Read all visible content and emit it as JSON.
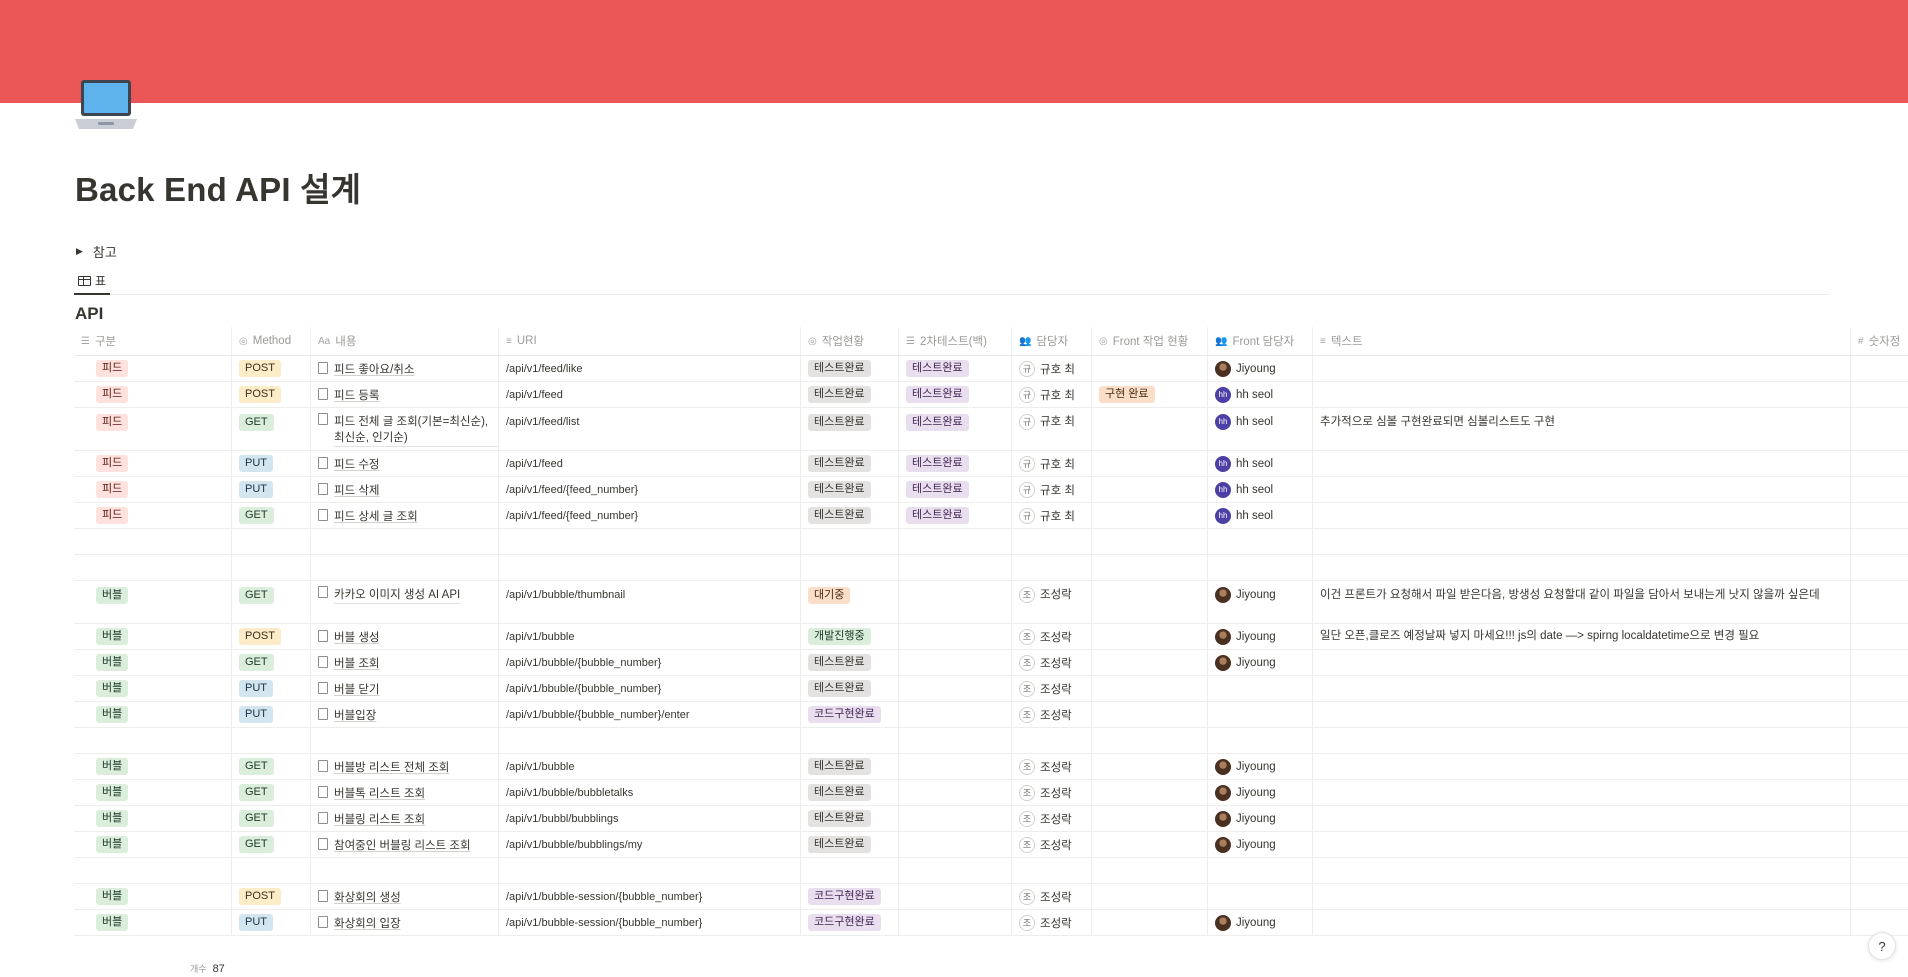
{
  "page": {
    "title": "Back End API 설계",
    "icon": "laptop-icon",
    "cover_color": "#eb5757"
  },
  "toggle": {
    "label": "참고"
  },
  "view_tab": {
    "label": "표",
    "icon": "table-icon"
  },
  "database": {
    "title": "API"
  },
  "columns": [
    {
      "key": "category",
      "label": "구분",
      "icon": "list-icon"
    },
    {
      "key": "method",
      "label": "Method",
      "icon": "status-icon"
    },
    {
      "key": "content",
      "label": "내용",
      "icon": "title-icon"
    },
    {
      "key": "uri",
      "label": "URI",
      "icon": "text-icon"
    },
    {
      "key": "status",
      "label": "작업현황",
      "icon": "status-icon"
    },
    {
      "key": "test2",
      "label": "2차테스트(백)",
      "icon": "list-icon"
    },
    {
      "key": "owner",
      "label": "담당자",
      "icon": "person-icon"
    },
    {
      "key": "front_status",
      "label": "Front 작업 현황",
      "icon": "status-icon"
    },
    {
      "key": "front_owner",
      "label": "Front 담당자",
      "icon": "person-icon"
    },
    {
      "key": "text",
      "label": "텍스트",
      "icon": "text-icon"
    },
    {
      "key": "number",
      "label": "숫자정",
      "icon": "number-icon"
    }
  ],
  "rows": [
    {
      "category": "피드",
      "method": "POST",
      "content": "피드 좋아요/취소",
      "uri": "/api/v1/feed/like",
      "status": "테스트완료",
      "test2": "테스트완료",
      "owner": "규호 최",
      "owner_initial": "규",
      "front_status": "",
      "front_owner": "Jiyoung",
      "front_avatar": "photo",
      "text": ""
    },
    {
      "category": "피드",
      "method": "POST",
      "content": "피드 등록",
      "uri": "/api/v1/feed",
      "status": "테스트완료",
      "test2": "테스트완료",
      "owner": "규호 최",
      "owner_initial": "규",
      "front_status": "구현 완료",
      "front_owner": "hh seol",
      "front_avatar": "hh",
      "text": ""
    },
    {
      "category": "피드",
      "method": "GET",
      "content": "피드 전체 글 조회(기본=최신순),최신순, 인기순)",
      "uri": "/api/v1/feed/list",
      "status": "테스트완료",
      "test2": "테스트완료",
      "owner": "규호 최",
      "owner_initial": "규",
      "front_status": "",
      "front_owner": "hh seol",
      "front_avatar": "hh",
      "text": "추가적으로 심볼 구현완료되면 심볼리스트도 구현"
    },
    {
      "category": "피드",
      "method": "PUT",
      "content": "피드 수정",
      "uri": "/api/v1/feed",
      "status": "테스트완료",
      "test2": "테스트완료",
      "owner": "규호 최",
      "owner_initial": "규",
      "front_status": "",
      "front_owner": "hh seol",
      "front_avatar": "hh",
      "text": ""
    },
    {
      "category": "피드",
      "method": "PUT",
      "content": "피드 삭제",
      "uri": "/api/v1/feed/{feed_number}",
      "status": "테스트완료",
      "test2": "테스트완료",
      "owner": "규호 최",
      "owner_initial": "규",
      "front_status": "",
      "front_owner": "hh seol",
      "front_avatar": "hh",
      "text": ""
    },
    {
      "category": "피드",
      "method": "GET",
      "content": "피드 상세 글 조회",
      "uri": "/api/v1/feed/{feed_number}",
      "status": "테스트완료",
      "test2": "테스트완료",
      "owner": "규호 최",
      "owner_initial": "규",
      "front_status": "",
      "front_owner": "hh seol",
      "front_avatar": "hh",
      "text": ""
    },
    {
      "empty": true
    },
    {
      "empty": true
    },
    {
      "category": "버블",
      "method": "GET",
      "content": "카카오 이미지 생성 AI API",
      "uri": "/api/v1/bubble/thumbnail",
      "status": "대기중",
      "test2": "",
      "owner": "조성락",
      "owner_initial": "조",
      "front_status": "",
      "front_owner": "Jiyoung",
      "front_avatar": "photo",
      "text": "이건 프론트가 요청해서 파일 받은다음, 방생성 요청할대 같이 파일을 담아서 보내는게 낫지 않을까 싶은데"
    },
    {
      "category": "버블",
      "method": "POST",
      "content": "버블 생성",
      "uri": "/api/v1/bubble",
      "status": "개발진행중",
      "test2": "",
      "owner": "조성락",
      "owner_initial": "조",
      "front_status": "",
      "front_owner": "Jiyoung",
      "front_avatar": "photo",
      "text": "일단 오픈,클로즈 예정날짜 넣지 마세요!!! js의 date —> spirng localdatetime으로 변경 필요"
    },
    {
      "category": "버블",
      "method": "GET",
      "content": "버블 조회",
      "uri": "/api/v1/bubble/{bubble_number}",
      "status": "테스트완료",
      "test2": "",
      "owner": "조성락",
      "owner_initial": "조",
      "front_status": "",
      "front_owner": "Jiyoung",
      "front_avatar": "photo",
      "text": ""
    },
    {
      "category": "버블",
      "method": "PUT",
      "content": "버블 닫기",
      "uri": "/api/v1/bbuble/{bubble_number}",
      "status": "테스트완료",
      "test2": "",
      "owner": "조성락",
      "owner_initial": "조",
      "front_status": "",
      "front_owner": "",
      "front_avatar": "",
      "text": ""
    },
    {
      "category": "버블",
      "method": "PUT",
      "content": "버블입장",
      "uri": "/api/v1/bubble/{bubble_number}/enter",
      "status": "코드구현완료",
      "test2": "",
      "owner": "조성락",
      "owner_initial": "조",
      "front_status": "",
      "front_owner": "",
      "front_avatar": "",
      "text": ""
    },
    {
      "empty": true
    },
    {
      "category": "버블",
      "method": "GET",
      "content": "버블방 리스트 전체 조회",
      "uri": "/api/v1/bubble",
      "status": "테스트완료",
      "test2": "",
      "owner": "조성락",
      "owner_initial": "조",
      "front_status": "",
      "front_owner": "Jiyoung",
      "front_avatar": "photo",
      "text": ""
    },
    {
      "category": "버블",
      "method": "GET",
      "content": "버블톡 리스트 조회",
      "uri": "/api/v1/bubble/bubbletalks",
      "status": "테스트완료",
      "test2": "",
      "owner": "조성락",
      "owner_initial": "조",
      "front_status": "",
      "front_owner": "Jiyoung",
      "front_avatar": "photo",
      "text": ""
    },
    {
      "category": "버블",
      "method": "GET",
      "content": "버블링 리스트 조회",
      "uri": "/api/v1/bubbl/bubblings",
      "status": "테스트완료",
      "test2": "",
      "owner": "조성락",
      "owner_initial": "조",
      "front_status": "",
      "front_owner": "Jiyoung",
      "front_avatar": "photo",
      "text": ""
    },
    {
      "category": "버블",
      "method": "GET",
      "content": "참여중인 버블링 리스트 조회",
      "uri": "/api/v1/bubble/bubblings/my",
      "status": "테스트완료",
      "test2": "",
      "owner": "조성락",
      "owner_initial": "조",
      "front_status": "",
      "front_owner": "Jiyoung",
      "front_avatar": "photo",
      "text": ""
    },
    {
      "empty": true
    },
    {
      "category": "버블",
      "method": "POST",
      "content": "화상회의 생성",
      "uri": "/api/v1/bubble-session/{bubble_number}",
      "status": "코드구현완료",
      "test2": "",
      "owner": "조성락",
      "owner_initial": "조",
      "front_status": "",
      "front_owner": "",
      "front_avatar": "",
      "text": ""
    },
    {
      "category": "버블",
      "method": "PUT",
      "content": "화상회의 입장",
      "uri": "/api/v1/bubble-session/{bubble_number}",
      "status": "코드구현완료",
      "test2": "",
      "owner": "조성락",
      "owner_initial": "조",
      "front_status": "",
      "front_owner": "Jiyoung",
      "front_avatar": "photo",
      "text": ""
    }
  ],
  "footer": {
    "count_label": "개수",
    "count": "87"
  },
  "help_button": {
    "label": "?"
  },
  "tag_colors": {
    "피드": {
      "bg": "#ffe2dd",
      "fg": "#5d1715"
    },
    "버블": {
      "bg": "#dbeddb",
      "fg": "#1c3829"
    },
    "POST": {
      "bg": "#fdecc8",
      "fg": "#402c1b"
    },
    "GET": {
      "bg": "#dbeddb",
      "fg": "#1c3829"
    },
    "PUT": {
      "bg": "#d3e5ef",
      "fg": "#183347"
    },
    "테스트완료": {
      "bg": "#e3e2e0",
      "fg": "#32302c"
    },
    "대기중": {
      "bg": "#fadec9",
      "fg": "#49290e"
    },
    "개발진행중": {
      "bg": "#dbeddb",
      "fg": "#1c3829"
    },
    "코드구현완료": {
      "bg": "#e8deee",
      "fg": "#412454"
    },
    "test2": {
      "bg": "#e8deee",
      "fg": "#412454"
    },
    "구현 완료": {
      "bg": "#fadec9",
      "fg": "#49290e"
    }
  }
}
